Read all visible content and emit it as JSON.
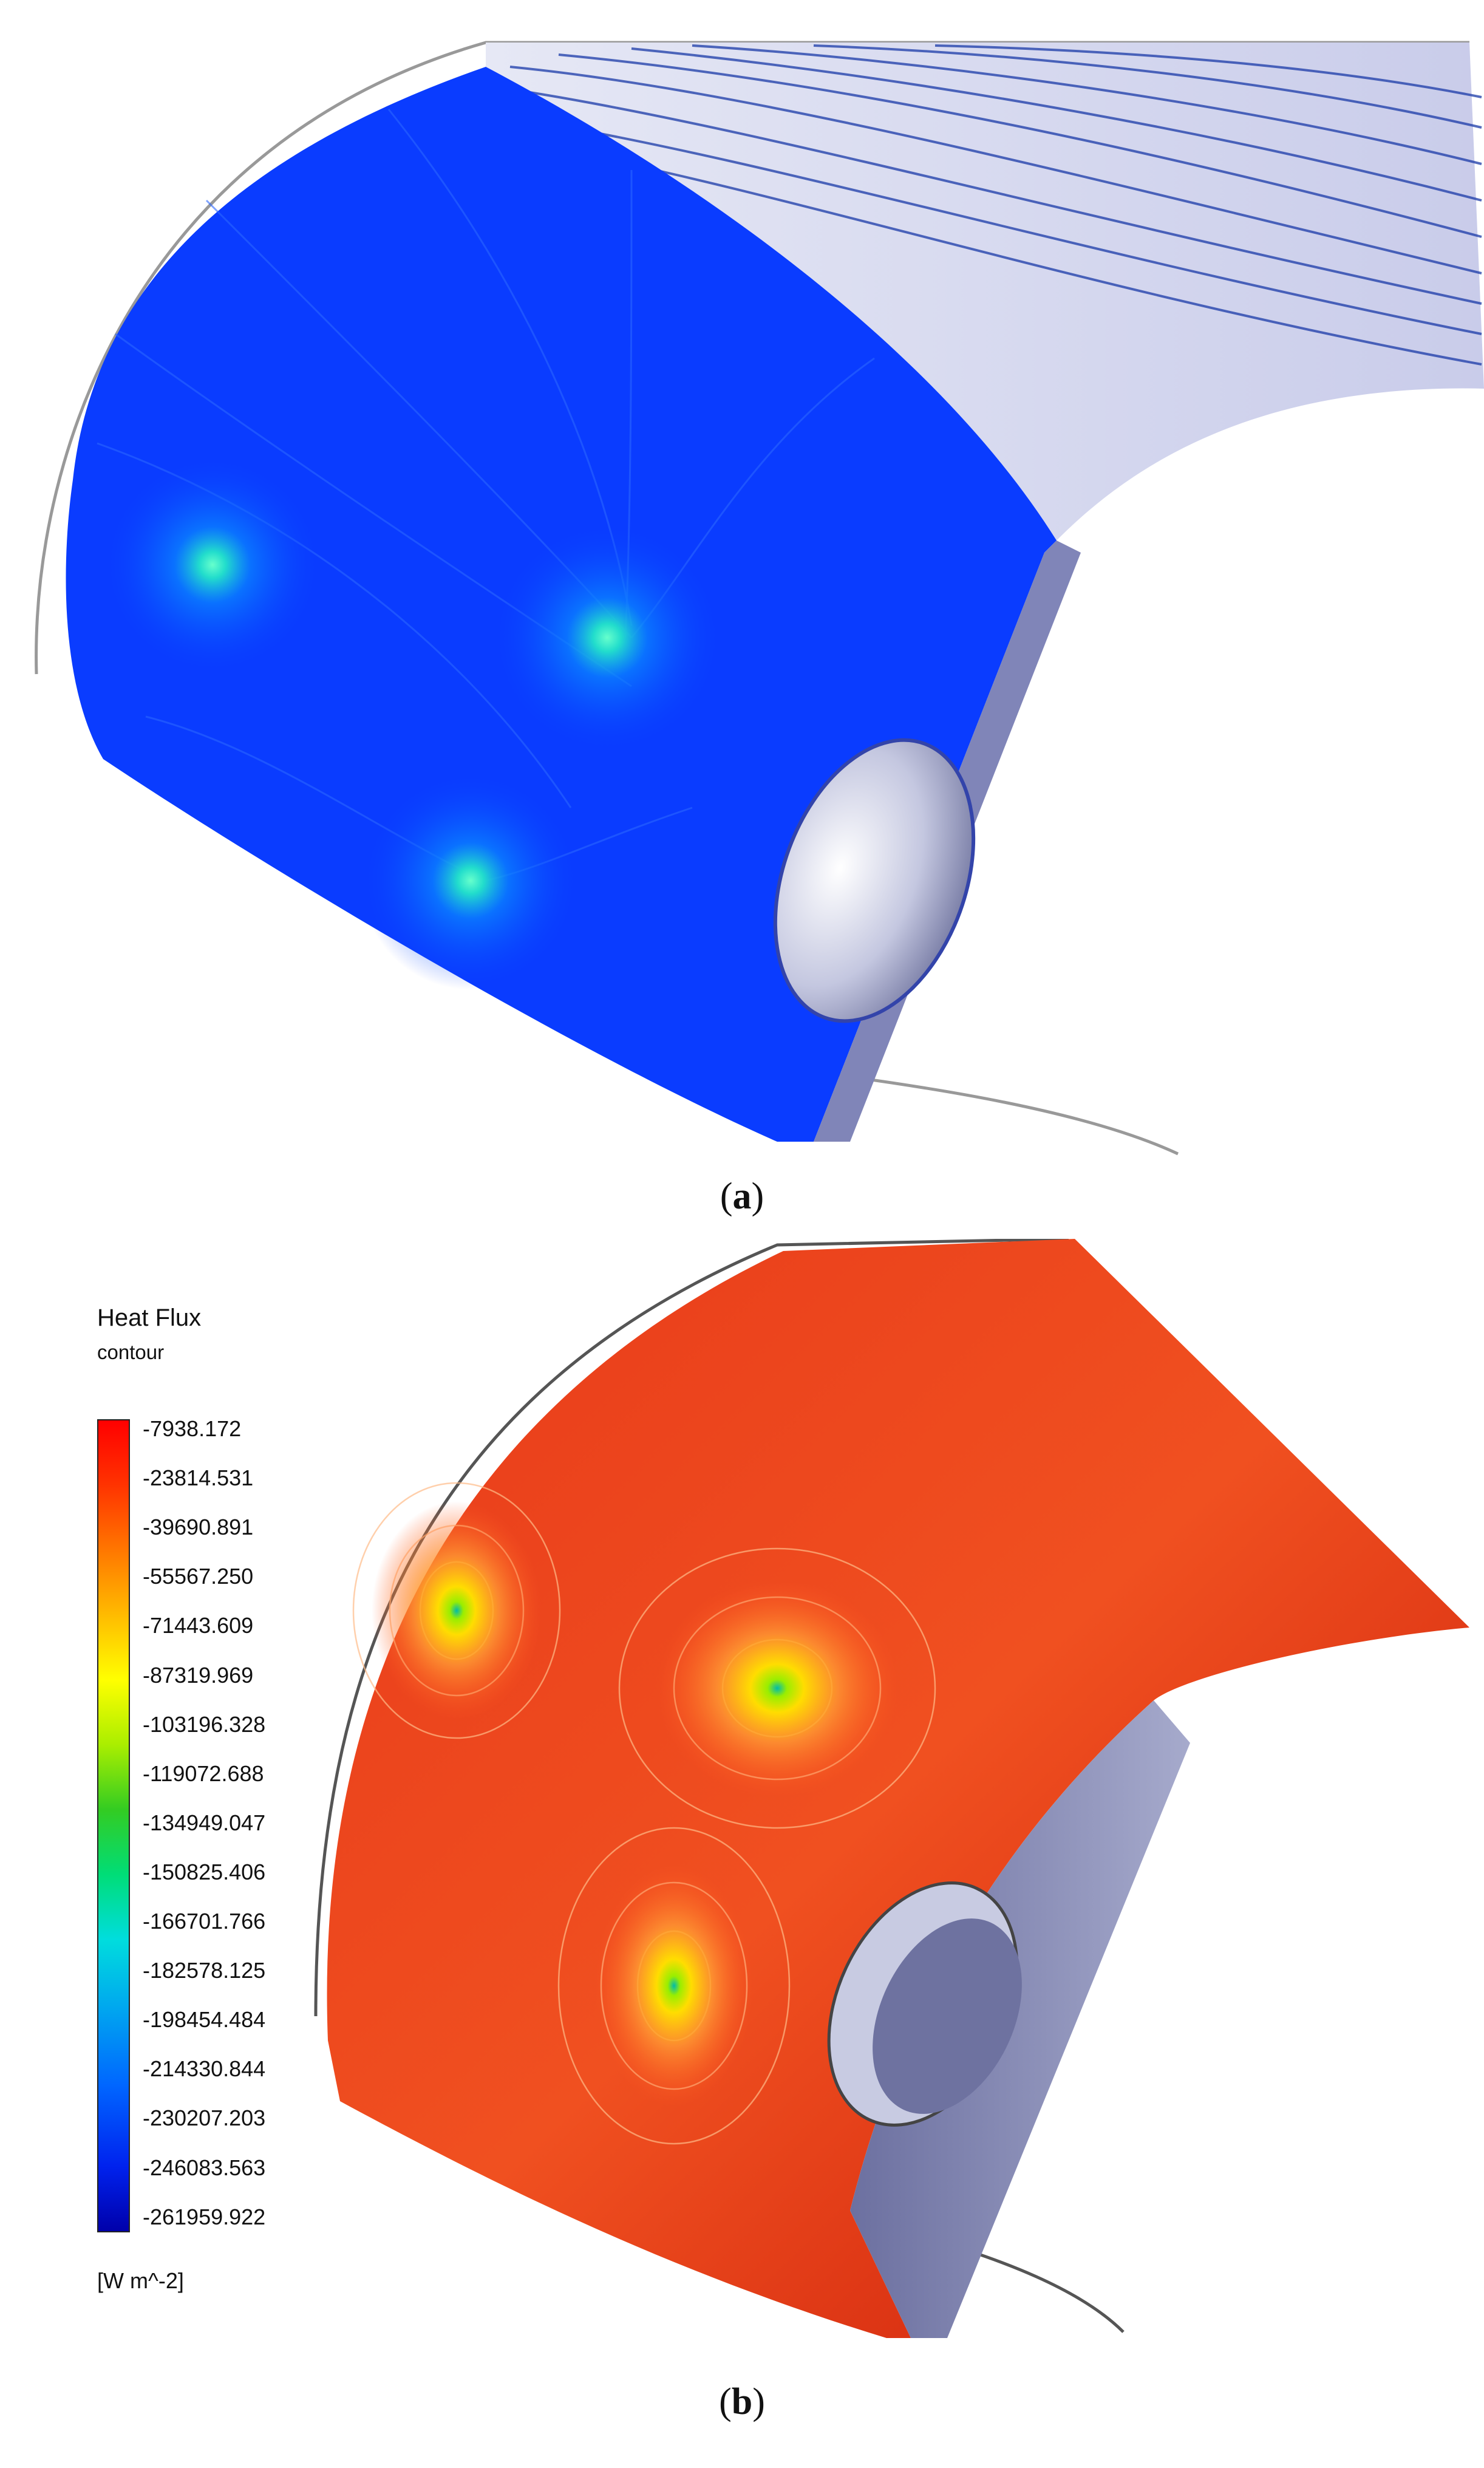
{
  "panels": [
    {
      "caption_open": "(",
      "caption_letter": "a",
      "caption_close": ")"
    },
    {
      "caption_open": "(",
      "caption_letter": "b",
      "caption_close": ")"
    }
  ],
  "legend": {
    "title": "Heat Flux",
    "subtitle": "contour",
    "ticks": [
      "-7938.172",
      "-23814.531",
      "-39690.891",
      "-55567.250",
      "-71443.609",
      "-87319.969",
      "-103196.328",
      "-119072.688",
      "-134949.047",
      "-150825.406",
      "-166701.766",
      "-182578.125",
      "-198454.484",
      "-214330.844",
      "-230207.203",
      "-246083.563",
      "-261959.922"
    ],
    "unit": "[W m^-2]"
  },
  "colors": {
    "streamline_blue": "#0a3cff",
    "surface_red": "#e8200a",
    "hole_gray": "#b8bcd6"
  }
}
